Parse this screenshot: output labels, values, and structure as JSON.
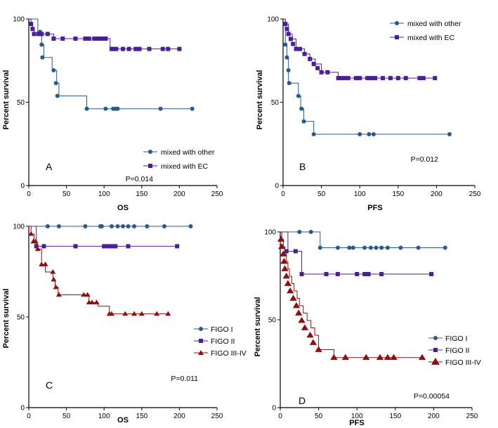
{
  "colors": {
    "blue": "#2a5a8a",
    "purple": "#4b1e96",
    "red": "#8b1010",
    "axis": "#000000"
  },
  "chart_data": [
    {
      "type": "line",
      "panel": "A",
      "xlabel": "OS",
      "ylabel": "Percent survival",
      "xlim": [
        0,
        250
      ],
      "ylim": [
        0,
        100
      ],
      "xticks": [
        0,
        50,
        100,
        150,
        200,
        250
      ],
      "yticks": [
        0,
        50,
        100
      ],
      "p_value": "P=0.014",
      "legend_position": "lower-center",
      "series": [
        {
          "name": "mixed with other",
          "color": "#2a5a8a",
          "marker": "circle",
          "markersize": 3,
          "x": [
            0,
            4,
            8,
            12,
            15,
            17,
            20,
            25,
            31,
            35,
            37,
            40,
            77,
            102,
            112,
            115,
            118,
            175,
            217
          ],
          "y": [
            100,
            100,
            100,
            92.3,
            92.3,
            84.6,
            76.9,
            76.9,
            69.2,
            69.2,
            61.5,
            53.8,
            46.1,
            46.1,
            46.1,
            46.1,
            46.1,
            46.1,
            46.1
          ],
          "markers": [
            [
              15,
              92.3
            ],
            [
              17,
              84.6
            ],
            [
              18,
              76.9
            ],
            [
              33,
              69.2
            ],
            [
              36,
              61.5
            ],
            [
              38,
              53.8
            ],
            [
              77,
              46.1
            ],
            [
              102,
              46.1
            ],
            [
              112,
              46.1
            ],
            [
              115,
              46.1
            ],
            [
              118,
              46.1
            ],
            [
              175,
              46.1
            ],
            [
              217,
              46.1
            ]
          ]
        },
        {
          "name": "mixed with EC",
          "color": "#4b1e96",
          "marker": "square",
          "markersize": 3,
          "x": [
            0,
            3,
            5,
            7,
            10,
            20,
            33,
            60,
            75,
            80,
            87,
            92,
            98,
            102,
            108,
            110,
            200
          ],
          "y": [
            100,
            97,
            94,
            91,
            91,
            91,
            88.2,
            88.2,
            88.2,
            88.2,
            88.2,
            88.2,
            88.2,
            88.2,
            82,
            82,
            82
          ],
          "markers": [
            [
              3,
              97
            ],
            [
              5,
              94
            ],
            [
              7,
              91
            ],
            [
              13,
              91
            ],
            [
              17,
              91
            ],
            [
              25,
              91
            ],
            [
              33,
              88.2
            ],
            [
              45,
              88.2
            ],
            [
              62,
              88.2
            ],
            [
              75,
              88.2
            ],
            [
              80,
              88.2
            ],
            [
              87,
              88.2
            ],
            [
              92,
              88.2
            ],
            [
              95,
              88.2
            ],
            [
              98,
              88.2
            ],
            [
              102,
              88.2
            ],
            [
              110,
              82
            ],
            [
              113,
              82
            ],
            [
              116,
              82
            ],
            [
              125,
              82
            ],
            [
              133,
              82
            ],
            [
              142,
              82
            ],
            [
              147,
              82
            ],
            [
              160,
              82
            ],
            [
              178,
              82
            ],
            [
              185,
              82
            ],
            [
              200,
              82
            ]
          ]
        }
      ]
    },
    {
      "type": "line",
      "panel": "B",
      "xlabel": "PFS",
      "ylabel": "Percent survival",
      "xlim": [
        0,
        250
      ],
      "ylim": [
        0,
        100
      ],
      "xticks": [
        0,
        50,
        100,
        150,
        200,
        250
      ],
      "yticks": [
        0,
        50,
        100
      ],
      "p_value": "P=0.012",
      "legend_position": "top-right",
      "series": [
        {
          "name": "mixed with other",
          "color": "#2a5a8a",
          "marker": "circle",
          "markersize": 3,
          "x": [
            0,
            3,
            5,
            7,
            20,
            23,
            27,
            40,
            217
          ],
          "y": [
            100,
            84.6,
            76.9,
            61.5,
            53.8,
            46.1,
            38.5,
            30.8,
            30.8
          ],
          "markers": [
            [
              3,
              84.6
            ],
            [
              5,
              76.9
            ],
            [
              7,
              69.2
            ],
            [
              8,
              61.5
            ],
            [
              20,
              53.8
            ],
            [
              24,
              46.1
            ],
            [
              27,
              38.5
            ],
            [
              40,
              30.8
            ],
            [
              100,
              30.8
            ],
            [
              112,
              30.8
            ],
            [
              118,
              30.8
            ],
            [
              217,
              30.8
            ]
          ]
        },
        {
          "name": "mixed with EC",
          "color": "#4b1e96",
          "marker": "square",
          "markersize": 3,
          "x": [
            0,
            3,
            7,
            12,
            17,
            22,
            28,
            35,
            42,
            50,
            60,
            72,
            200
          ],
          "y": [
            100,
            97,
            91,
            88,
            82,
            82,
            79,
            76,
            73,
            68,
            68,
            64.5,
            64.5
          ],
          "markers": [
            [
              3,
              97
            ],
            [
              5,
              94
            ],
            [
              7,
              91
            ],
            [
              10,
              88
            ],
            [
              13,
              85
            ],
            [
              17,
              82
            ],
            [
              22,
              82
            ],
            [
              28,
              79
            ],
            [
              35,
              76
            ],
            [
              40,
              73
            ],
            [
              45,
              70.5
            ],
            [
              50,
              68
            ],
            [
              58,
              68
            ],
            [
              72,
              64.5
            ],
            [
              75,
              64.5
            ],
            [
              80,
              64.5
            ],
            [
              85,
              64.5
            ],
            [
              95,
              64.5
            ],
            [
              100,
              64.5
            ],
            [
              110,
              64.5
            ],
            [
              115,
              64.5
            ],
            [
              120,
              64.5
            ],
            [
              130,
              64.5
            ],
            [
              140,
              64.5
            ],
            [
              150,
              64.5
            ],
            [
              160,
              64.5
            ],
            [
              178,
              64.5
            ],
            [
              183,
              64.5
            ],
            [
              198,
              64.5
            ]
          ]
        }
      ]
    },
    {
      "type": "line",
      "panel": "C",
      "xlabel": "OS",
      "ylabel": "Percent survival",
      "xlim": [
        0,
        250
      ],
      "ylim": [
        0,
        100
      ],
      "xticks": [
        0,
        50,
        100,
        150,
        200,
        250
      ],
      "yticks": [
        0,
        50,
        100
      ],
      "p_value": "P=0.011",
      "legend_position": "right",
      "series": [
        {
          "name": "FIGO I",
          "color": "#2a5a8a",
          "marker": "circle",
          "markersize": 3,
          "x": [
            0,
            217
          ],
          "y": [
            100,
            100
          ],
          "markers": [
            [
              25,
              100
            ],
            [
              40,
              100
            ],
            [
              75,
              100
            ],
            [
              95,
              100
            ],
            [
              97,
              100
            ],
            [
              110,
              100
            ],
            [
              118,
              100
            ],
            [
              125,
              100
            ],
            [
              132,
              100
            ],
            [
              140,
              100
            ],
            [
              157,
              100
            ],
            [
              180,
              100
            ],
            [
              215,
              100
            ]
          ]
        },
        {
          "name": "FIGO II",
          "color": "#4b1e96",
          "marker": "square",
          "markersize": 3,
          "x": [
            0,
            10,
            200
          ],
          "y": [
            100,
            89,
            89
          ],
          "markers": [
            [
              10,
              89
            ],
            [
              20,
              89
            ],
            [
              62,
              89
            ],
            [
              100,
              89
            ],
            [
              105,
              89
            ],
            [
              110,
              89
            ],
            [
              115,
              89
            ],
            [
              132,
              89
            ],
            [
              197,
              89
            ]
          ]
        },
        {
          "name": "FIGO III-IV",
          "color": "#8b1010",
          "marker": "triangle",
          "markersize": 3.5,
          "x": [
            0,
            3,
            7,
            11,
            17,
            22,
            32,
            35,
            39,
            73,
            80,
            85,
            92,
            107,
            187
          ],
          "y": [
            100,
            95.8,
            91.6,
            87.4,
            79,
            74.8,
            70.6,
            66.4,
            62.2,
            62.2,
            58,
            58,
            55.9,
            51.7,
            51.7
          ],
          "markers": [
            [
              3,
              95.8
            ],
            [
              6,
              91.6
            ],
            [
              9,
              91.6
            ],
            [
              12,
              87.4
            ],
            [
              17,
              79
            ],
            [
              22,
              79
            ],
            [
              32,
              74.8
            ],
            [
              33,
              70.6
            ],
            [
              36,
              66.4
            ],
            [
              40,
              62.2
            ],
            [
              73,
              62.2
            ],
            [
              78,
              62.2
            ],
            [
              80,
              58
            ],
            [
              84,
              58
            ],
            [
              90,
              58
            ],
            [
              107,
              51.7
            ],
            [
              110,
              51.7
            ],
            [
              128,
              51.7
            ],
            [
              140,
              51.7
            ],
            [
              150,
              51.7
            ],
            [
              170,
              51.7
            ],
            [
              185,
              51.7
            ]
          ]
        }
      ]
    },
    {
      "type": "line",
      "panel": "D",
      "xlabel": "PFS",
      "ylabel": "Percent survival",
      "xlim": [
        0,
        250
      ],
      "ylim": [
        0,
        100
      ],
      "xticks": [
        0,
        50,
        100,
        150,
        200,
        250
      ],
      "yticks": [
        0,
        50,
        100
      ],
      "p_value": "P=0.00054",
      "legend_position": "right",
      "series": [
        {
          "name": "FIGO I",
          "color": "#2a5a8a",
          "marker": "circle",
          "markersize": 3,
          "x": [
            0,
            40,
            52,
            215
          ],
          "y": [
            100,
            100,
            91,
            91
          ],
          "markers": [
            [
              25,
              100
            ],
            [
              40,
              100
            ],
            [
              52,
              91
            ],
            [
              75,
              91
            ],
            [
              90,
              91
            ],
            [
              95,
              91
            ],
            [
              110,
              91
            ],
            [
              118,
              91
            ],
            [
              125,
              91
            ],
            [
              132,
              91
            ],
            [
              140,
              91
            ],
            [
              157,
              91
            ],
            [
              180,
              91
            ],
            [
              215,
              91
            ]
          ]
        },
        {
          "name": "FIGO II",
          "color": "#4b1e96",
          "marker": "square",
          "markersize": 3,
          "x": [
            0,
            10,
            28,
            200
          ],
          "y": [
            100,
            89,
            76,
            76
          ],
          "markers": [
            [
              8,
              89
            ],
            [
              20,
              89
            ],
            [
              28,
              76
            ],
            [
              60,
              76
            ],
            [
              75,
              76
            ],
            [
              100,
              76
            ],
            [
              110,
              76
            ],
            [
              115,
              76
            ],
            [
              132,
              76
            ],
            [
              197,
              76
            ]
          ]
        },
        {
          "name": "FIGO III-IV",
          "color": "#8b1010",
          "marker": "triangle",
          "markersize": 4.5,
          "x": [
            0,
            2,
            4,
            6,
            8,
            10,
            12,
            15,
            18,
            22,
            25,
            30,
            35,
            40,
            45,
            50,
            70,
            185
          ],
          "y": [
            100,
            95.8,
            91.6,
            87.4,
            83.2,
            79,
            74.8,
            70.6,
            66.4,
            62.2,
            58,
            53.8,
            49.6,
            45.4,
            41.2,
            33,
            28.5,
            28.5
          ],
          "markers": [
            [
              1,
              95.8
            ],
            [
              2,
              91.6
            ],
            [
              4,
              87.4
            ],
            [
              5,
              83.2
            ],
            [
              6,
              79
            ],
            [
              8,
              74.8
            ],
            [
              10,
              70.6
            ],
            [
              13,
              66.4
            ],
            [
              17,
              62.2
            ],
            [
              21,
              58
            ],
            [
              24,
              53.8
            ],
            [
              28,
              49.6
            ],
            [
              32,
              45.4
            ],
            [
              39,
              41.2
            ],
            [
              43,
              37
            ],
            [
              50,
              33
            ],
            [
              70,
              28.5
            ],
            [
              85,
              28.5
            ],
            [
              112,
              28.5
            ],
            [
              130,
              28.5
            ],
            [
              140,
              28.5
            ],
            [
              148,
              28.5
            ],
            [
              185,
              28.5
            ]
          ]
        }
      ]
    }
  ]
}
